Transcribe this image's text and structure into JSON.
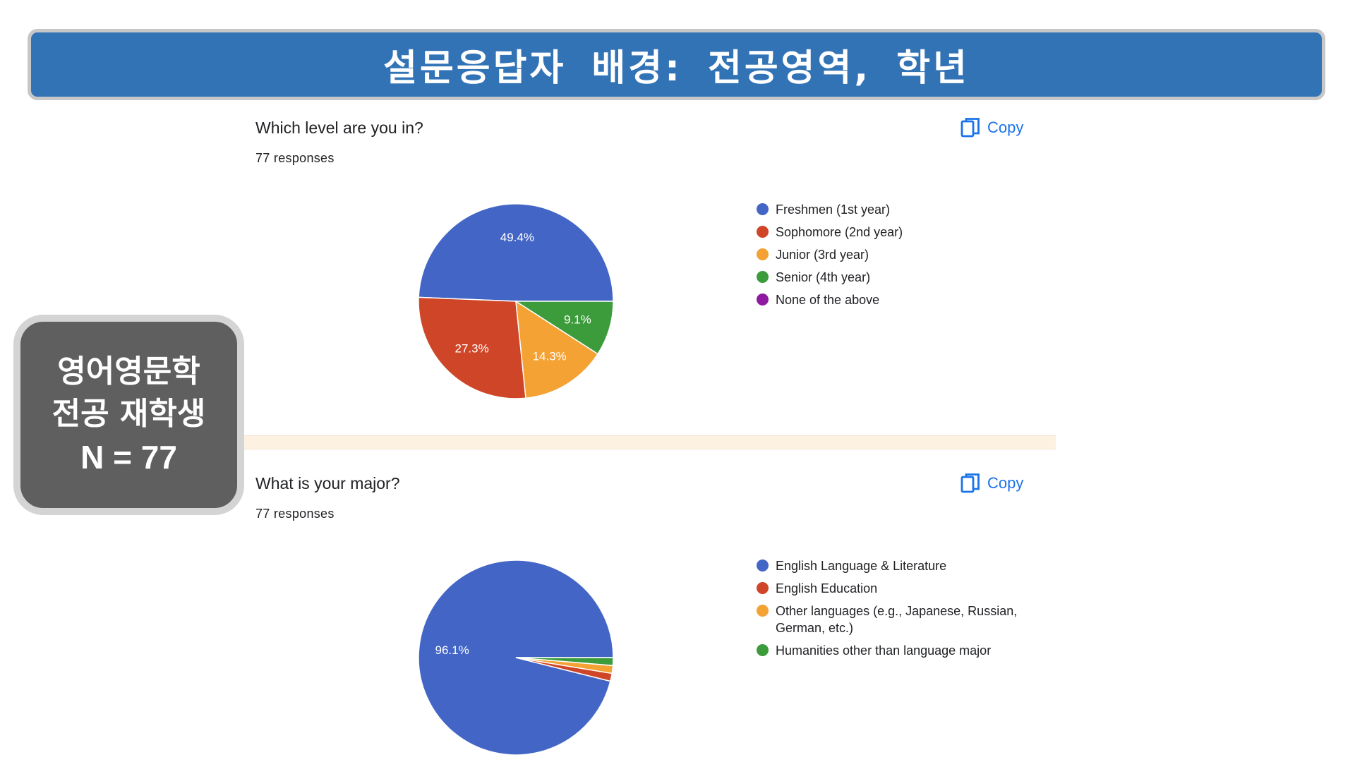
{
  "slide": {
    "title": "설문응답자 배경: 전공영역, 학년",
    "side_card": {
      "line1": "영어영문학",
      "line2": "전공 재학생",
      "line3": "N = 77"
    }
  },
  "colors": {
    "banner": "#3273b6",
    "side_card": "#5f5f5f",
    "link_blue": "#1a73e8",
    "blue": "#4366c6",
    "red": "#cf4527",
    "orange": "#f3a233",
    "green": "#3c9b3a",
    "purple": "#8e1aa0"
  },
  "questions": [
    {
      "title": "Which level are you in?",
      "responses": "77 responses",
      "copy_label": "Copy",
      "copy_icon": "copy-icon"
    },
    {
      "title": "What is your major?",
      "responses": "77 responses",
      "copy_label": "Copy",
      "copy_icon": "copy-icon"
    }
  ],
  "chart_data": [
    {
      "type": "pie",
      "title": "Which level are you in?",
      "legend_position": "right",
      "slices": [
        {
          "label": "Freshmen (1st year)",
          "value": 49.4,
          "color": "#4366c6",
          "show_label": "49.4%"
        },
        {
          "label": "Sophomore (2nd year)",
          "value": 27.3,
          "color": "#cf4527",
          "show_label": "27.3%"
        },
        {
          "label": "Junior (3rd year)",
          "value": 14.3,
          "color": "#f3a233",
          "show_label": "14.3%"
        },
        {
          "label": "Senior (4th year)",
          "value": 9.1,
          "color": "#3c9b3a",
          "show_label": "9.1%"
        },
        {
          "label": "None of the above",
          "value": 0,
          "color": "#8e1aa0",
          "show_label": ""
        }
      ]
    },
    {
      "type": "pie",
      "title": "What is your major?",
      "legend_position": "right",
      "slices": [
        {
          "label": "English Language & Literature",
          "value": 96.1,
          "color": "#4366c6",
          "show_label": "96.1%"
        },
        {
          "label": "English Education",
          "value": 1.3,
          "color": "#cf4527",
          "show_label": ""
        },
        {
          "label": "Other languages (e.g., Japanese, Russian, German, etc.)",
          "value": 1.3,
          "color": "#f3a233",
          "show_label": ""
        },
        {
          "label": "Humanities other than language major",
          "value": 1.3,
          "color": "#3c9b3a",
          "show_label": ""
        }
      ]
    }
  ]
}
